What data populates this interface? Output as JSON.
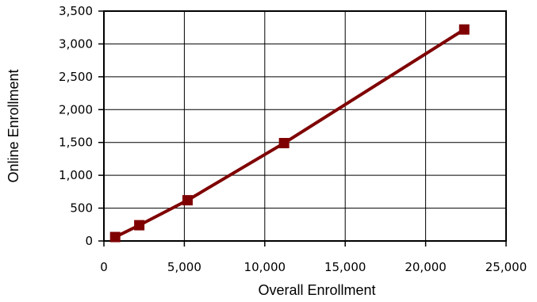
{
  "chart_data": {
    "type": "line",
    "title": "",
    "xlabel": "Overall Enrollment",
    "ylabel": "Online Enrollment",
    "xlim": [
      0,
      25000
    ],
    "ylim": [
      0,
      3500
    ],
    "x_ticks": [
      0,
      5000,
      10000,
      15000,
      20000,
      25000
    ],
    "y_ticks": [
      0,
      500,
      1000,
      1500,
      2000,
      2500,
      3000,
      3500
    ],
    "x_tick_labels": [
      "0",
      "5,000",
      "10,000",
      "15,000",
      "20,000",
      "25,000"
    ],
    "y_tick_labels": [
      "0",
      "500",
      "1,000",
      "1,500",
      "2,000",
      "2,500",
      "3,000",
      "3,500"
    ],
    "grid": true,
    "legend": "none",
    "series": [
      {
        "color": "#7f0000",
        "marker": "square",
        "x": [
          700,
          2200,
          5200,
          11200,
          22400
        ],
        "y": [
          60,
          240,
          620,
          1490,
          3220
        ]
      }
    ]
  }
}
